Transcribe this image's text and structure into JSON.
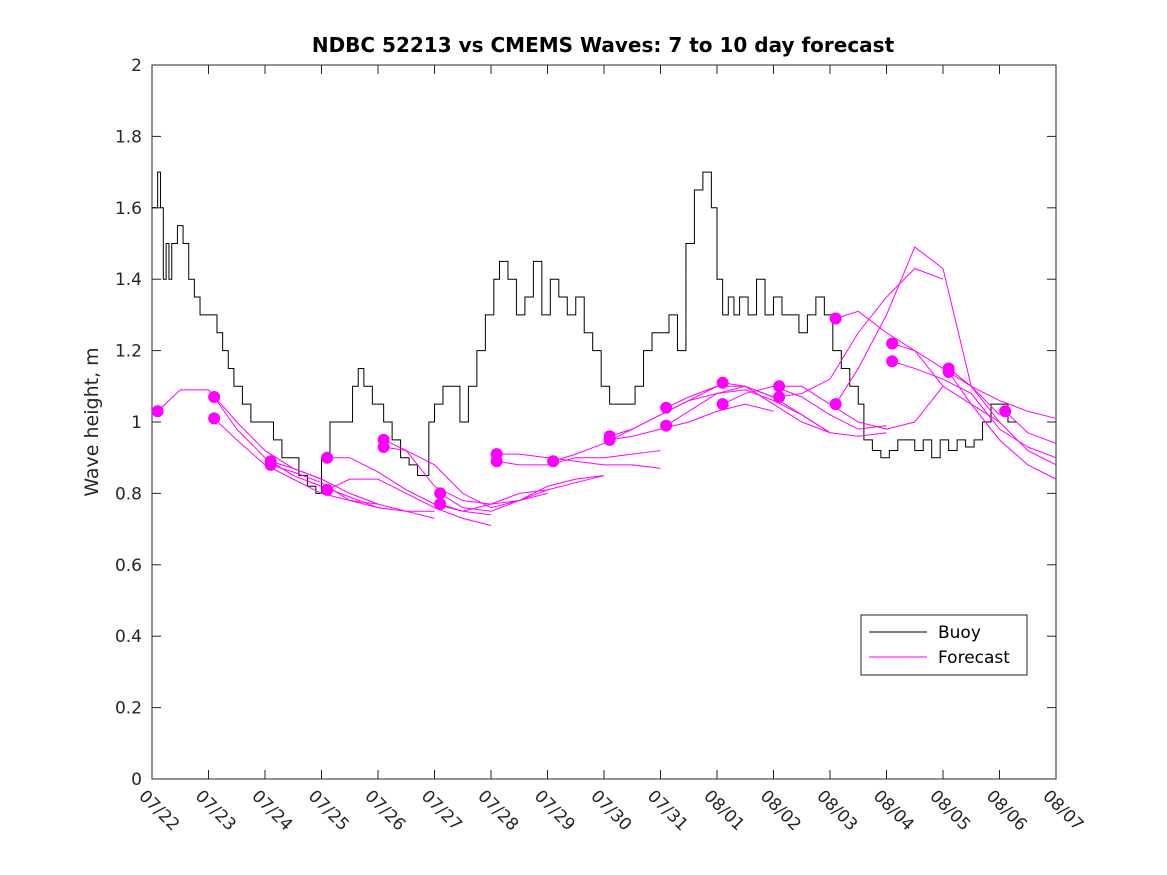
{
  "chart_data": {
    "type": "line",
    "title": "NDBC 52213 vs CMEMS Waves: 7 to 10 day forecast",
    "xlabel": "",
    "ylabel": "Wave height, m",
    "ylim": [
      0,
      2
    ],
    "yticks": [
      "0",
      "0.2",
      "0.4",
      "0.6",
      "0.8",
      "1",
      "1.2",
      "1.4",
      "1.6",
      "1.8",
      "2"
    ],
    "xlim": [
      "07/22",
      "08/07"
    ],
    "xticks": [
      "07/22",
      "07/23",
      "07/24",
      "07/25",
      "07/26",
      "07/27",
      "07/28",
      "07/29",
      "07/30",
      "07/31",
      "08/01",
      "08/02",
      "08/03",
      "08/04",
      "08/05",
      "08/06",
      "08/07"
    ],
    "grid": false,
    "legend": {
      "position": "bottom-right",
      "entries": [
        {
          "name": "Buoy",
          "color": "#000000"
        },
        {
          "name": "Forecast",
          "color": "#ff00ff"
        }
      ]
    },
    "colors": {
      "buoy": "#000000",
      "forecast": "#ff00ff"
    },
    "buoy": {
      "name": "Buoy",
      "x_days": [
        0.0,
        0.1,
        0.15,
        0.2,
        0.25,
        0.3,
        0.35,
        0.45,
        0.55,
        0.65,
        0.75,
        0.85,
        1.0,
        1.15,
        1.25,
        1.35,
        1.45,
        1.6,
        1.75,
        1.9,
        2.05,
        2.15,
        2.3,
        2.45,
        2.6,
        2.75,
        2.9,
        3.0,
        3.15,
        3.3,
        3.45,
        3.55,
        3.65,
        3.75,
        3.9,
        4.1,
        4.25,
        4.4,
        4.55,
        4.7,
        4.9,
        5.0,
        5.15,
        5.3,
        5.45,
        5.6,
        5.75,
        5.9,
        6.05,
        6.15,
        6.3,
        6.45,
        6.6,
        6.75,
        6.9,
        7.05,
        7.2,
        7.35,
        7.5,
        7.65,
        7.8,
        7.95,
        8.1,
        8.25,
        8.4,
        8.55,
        8.7,
        8.85,
        9.0,
        9.15,
        9.3,
        9.45,
        9.6,
        9.75,
        9.9,
        10.0,
        10.1,
        10.2,
        10.3,
        10.4,
        10.55,
        10.7,
        10.85,
        11.0,
        11.15,
        11.3,
        11.45,
        11.6,
        11.75,
        11.9,
        12.05,
        12.2,
        12.35,
        12.5,
        12.6,
        12.75,
        12.9,
        13.05,
        13.2,
        13.35,
        13.5,
        13.65,
        13.8,
        13.95,
        14.1,
        14.25,
        14.4,
        14.55,
        14.7,
        14.85,
        15.0,
        15.15,
        15.3
      ],
      "values": [
        1.6,
        1.7,
        1.6,
        1.4,
        1.5,
        1.4,
        1.5,
        1.55,
        1.5,
        1.4,
        1.35,
        1.3,
        1.3,
        1.25,
        1.2,
        1.15,
        1.1,
        1.05,
        1.0,
        1.0,
        1.0,
        0.95,
        0.9,
        0.9,
        0.85,
        0.82,
        0.8,
        0.9,
        1.0,
        1.0,
        1.0,
        1.1,
        1.15,
        1.1,
        1.05,
        1.0,
        0.95,
        0.9,
        0.88,
        0.85,
        1.0,
        1.05,
        1.1,
        1.1,
        1.0,
        1.1,
        1.2,
        1.3,
        1.4,
        1.45,
        1.4,
        1.3,
        1.35,
        1.45,
        1.3,
        1.4,
        1.35,
        1.3,
        1.35,
        1.25,
        1.2,
        1.1,
        1.05,
        1.05,
        1.05,
        1.1,
        1.2,
        1.25,
        1.25,
        1.3,
        1.2,
        1.5,
        1.65,
        1.7,
        1.6,
        1.4,
        1.3,
        1.35,
        1.3,
        1.35,
        1.3,
        1.4,
        1.3,
        1.35,
        1.3,
        1.3,
        1.25,
        1.3,
        1.35,
        1.3,
        1.2,
        1.15,
        1.1,
        1.05,
        0.95,
        0.92,
        0.9,
        0.92,
        0.95,
        0.95,
        0.92,
        0.95,
        0.9,
        0.95,
        0.92,
        0.95,
        0.93,
        0.95,
        1.0,
        1.05,
        1.05,
        1.0,
        1.0
      ]
    },
    "forecast_series": [
      {
        "start_value": 1.03,
        "x_days": [
          0.1,
          0.5,
          1.0,
          1.5,
          2.0,
          2.5,
          3.0
        ],
        "values": [
          1.03,
          1.09,
          1.09,
          1.0,
          0.92,
          0.87,
          0.84
        ]
      },
      {
        "start_value": 1.01,
        "x_days": [
          1.1,
          1.5,
          2.0,
          2.5,
          3.0,
          3.5,
          4.0
        ],
        "values": [
          1.01,
          0.95,
          0.88,
          0.84,
          0.8,
          0.78,
          0.77
        ]
      },
      {
        "start_value": 1.07,
        "x_days": [
          1.1,
          1.5,
          2.0,
          2.5,
          3.0,
          3.5,
          4.0
        ],
        "values": [
          1.07,
          0.98,
          0.9,
          0.85,
          0.82,
          0.79,
          0.76
        ]
      },
      {
        "start_value": 0.89,
        "x_days": [
          2.1,
          2.5,
          3.0,
          3.5,
          4.0,
          4.5,
          5.0
        ],
        "values": [
          0.89,
          0.87,
          0.84,
          0.8,
          0.77,
          0.75,
          0.73
        ]
      },
      {
        "start_value": 0.88,
        "x_days": [
          2.1,
          2.5,
          3.0,
          3.5,
          4.0,
          4.5,
          5.0
        ],
        "values": [
          0.88,
          0.86,
          0.83,
          0.78,
          0.76,
          0.75,
          0.75
        ]
      },
      {
        "start_value": 0.81,
        "x_days": [
          3.1,
          3.5,
          4.0,
          4.5,
          5.0,
          5.5,
          6.0
        ],
        "values": [
          0.81,
          0.84,
          0.84,
          0.8,
          0.76,
          0.73,
          0.71
        ]
      },
      {
        "start_value": 0.9,
        "x_days": [
          3.1,
          3.5,
          4.0,
          4.5,
          5.0,
          5.5,
          6.0
        ],
        "values": [
          0.9,
          0.9,
          0.86,
          0.81,
          0.77,
          0.75,
          0.74
        ]
      },
      {
        "start_value": 0.95,
        "x_days": [
          4.1,
          4.5,
          5.0,
          5.5,
          6.0,
          6.5,
          7.0
        ],
        "values": [
          0.95,
          0.92,
          0.82,
          0.78,
          0.77,
          0.78,
          0.81
        ]
      },
      {
        "start_value": 0.93,
        "x_days": [
          4.1,
          4.5,
          5.0,
          5.5,
          6.0,
          6.5,
          7.0
        ],
        "values": [
          0.93,
          0.92,
          0.88,
          0.8,
          0.76,
          0.78,
          0.8
        ]
      },
      {
        "start_value": 0.8,
        "x_days": [
          5.1,
          5.5,
          6.0,
          6.5,
          7.0,
          7.5,
          8.0
        ],
        "values": [
          0.8,
          0.76,
          0.75,
          0.78,
          0.82,
          0.84,
          0.85
        ]
      },
      {
        "start_value": 0.77,
        "x_days": [
          5.1,
          5.5,
          6.0,
          6.5,
          7.0,
          7.5,
          8.0
        ],
        "values": [
          0.77,
          0.75,
          0.77,
          0.8,
          0.81,
          0.83,
          0.85
        ]
      },
      {
        "start_value": 0.91,
        "x_days": [
          6.1,
          6.5,
          7.0,
          7.5,
          8.0,
          8.5,
          9.0
        ],
        "values": [
          0.91,
          0.91,
          0.9,
          0.89,
          0.88,
          0.88,
          0.87
        ]
      },
      {
        "start_value": 0.89,
        "x_days": [
          6.1,
          6.5,
          7.0,
          7.5,
          8.0,
          8.5,
          9.0
        ],
        "values": [
          0.89,
          0.88,
          0.88,
          0.9,
          0.9,
          0.91,
          0.92
        ]
      },
      {
        "start_value": 0.89,
        "x_days": [
          7.1,
          7.5,
          8.0,
          8.5,
          9.0,
          9.5,
          10.0
        ],
        "values": [
          0.89,
          0.91,
          0.94,
          0.98,
          1.02,
          1.06,
          1.1
        ]
      },
      {
        "start_value": 0.96,
        "x_days": [
          8.1,
          8.5,
          9.0,
          9.5,
          10.0,
          10.5,
          11.0
        ],
        "values": [
          0.96,
          0.98,
          1.02,
          1.06,
          1.08,
          1.1,
          1.07
        ]
      },
      {
        "start_value": 0.95,
        "x_days": [
          8.1,
          8.5,
          9.0,
          9.5,
          10.0,
          10.5,
          11.0
        ],
        "values": [
          0.95,
          0.96,
          0.98,
          1.0,
          1.03,
          1.05,
          1.03
        ]
      },
      {
        "start_value": 1.04,
        "x_days": [
          9.1,
          9.5,
          10.0,
          10.5,
          11.0,
          11.5,
          12.0
        ],
        "values": [
          1.04,
          1.07,
          1.1,
          1.1,
          1.05,
          1.0,
          0.97
        ]
      },
      {
        "start_value": 0.99,
        "x_days": [
          9.1,
          9.5,
          10.0,
          10.5,
          11.0,
          11.5,
          12.0
        ],
        "values": [
          0.99,
          1.03,
          1.08,
          1.09,
          1.06,
          1.02,
          0.97
        ]
      },
      {
        "start_value": 1.11,
        "x_days": [
          10.1,
          10.5,
          11.0,
          11.5,
          12.0,
          12.5,
          13.0
        ],
        "values": [
          1.11,
          1.1,
          1.07,
          1.02,
          0.97,
          0.96,
          0.97
        ]
      },
      {
        "start_value": 1.05,
        "x_days": [
          10.1,
          10.5,
          11.0,
          11.5,
          12.0,
          12.5,
          13.0
        ],
        "values": [
          1.05,
          1.08,
          1.1,
          1.07,
          1.02,
          0.98,
          0.99
        ]
      },
      {
        "start_value": 1.1,
        "x_days": [
          11.1,
          11.5,
          12.0,
          12.5,
          13.0,
          13.5,
          14.0
        ],
        "values": [
          1.1,
          1.1,
          1.05,
          1.0,
          0.98,
          1.0,
          1.1
        ]
      },
      {
        "start_value": 1.07,
        "x_days": [
          11.1,
          11.5,
          12.0,
          12.5,
          13.0,
          13.5,
          14.0
        ],
        "values": [
          1.07,
          1.08,
          1.12,
          1.25,
          1.35,
          1.43,
          1.4
        ]
      },
      {
        "start_value": 1.29,
        "x_days": [
          12.1,
          12.5,
          13.0,
          13.5,
          14.0,
          14.5,
          15.0
        ],
        "values": [
          1.29,
          1.31,
          1.25,
          1.2,
          1.1,
          1.05,
          1.0
        ]
      },
      {
        "start_value": 1.05,
        "x_days": [
          12.1,
          12.5,
          13.0,
          13.5,
          14.0,
          14.5,
          15.0
        ],
        "values": [
          1.05,
          1.15,
          1.3,
          1.49,
          1.43,
          1.1,
          1.02
        ]
      },
      {
        "start_value": 1.22,
        "x_days": [
          13.1,
          13.5,
          14.0,
          14.5,
          15.0,
          15.5,
          16.0
        ],
        "values": [
          1.22,
          1.2,
          1.15,
          1.1,
          1.06,
          1.03,
          1.01
        ]
      },
      {
        "start_value": 1.17,
        "x_days": [
          13.1,
          13.5,
          14.0,
          14.5,
          15.0,
          15.5,
          16.0
        ],
        "values": [
          1.17,
          1.15,
          1.12,
          1.08,
          0.98,
          0.93,
          0.9
        ]
      },
      {
        "start_value": 1.15,
        "x_days": [
          14.1,
          14.5,
          15.0,
          15.5,
          16.0
        ],
        "values": [
          1.15,
          1.1,
          1.0,
          0.92,
          0.88
        ]
      },
      {
        "start_value": 1.14,
        "x_days": [
          14.1,
          14.5,
          15.0,
          15.5,
          16.0
        ],
        "values": [
          1.14,
          1.05,
          0.95,
          0.88,
          0.84
        ]
      },
      {
        "start_value": 1.03,
        "x_days": [
          15.1,
          15.5,
          16.0
        ],
        "values": [
          1.03,
          0.97,
          0.94
        ]
      }
    ]
  }
}
